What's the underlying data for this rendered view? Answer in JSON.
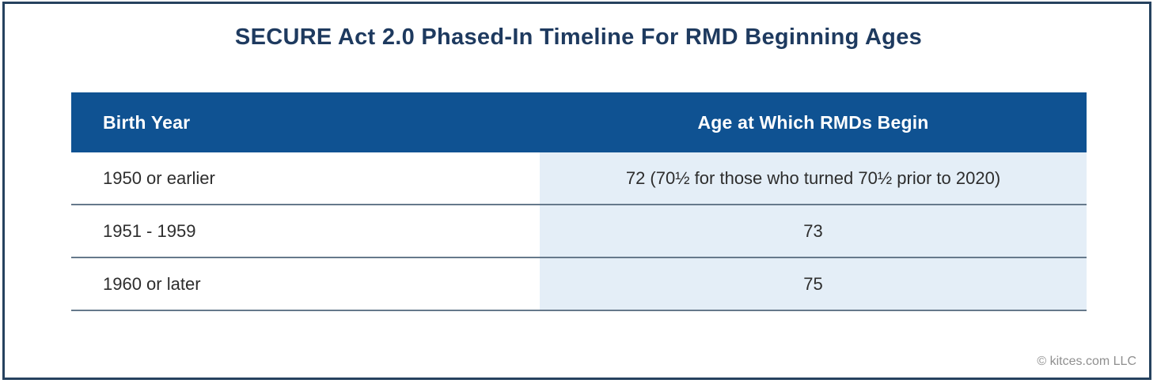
{
  "title": "SECURE Act 2.0 Phased-In Timeline For RMD Beginning Ages",
  "footer": {
    "credit": "© kitces.com LLC"
  },
  "colors": {
    "header_bg": "#0F5292",
    "header_text": "#FFFFFF",
    "highlight_column_bg": "#E4EEF7",
    "title_text": "#1E3A5F",
    "card_border": "#26425F",
    "row_divider": "#66798B",
    "body_text": "#2D2D2D",
    "credit_text": "#8F8F8F"
  },
  "chart_data": {
    "type": "table",
    "title": "SECURE Act 2.0 Phased-In Timeline For RMD Beginning Ages",
    "columns": [
      "Birth Year",
      "Age at Which RMDs Begin"
    ],
    "rows": [
      [
        "1950 or earlier",
        "72 (70½ for those who turned 70½ prior to 2020)"
      ],
      [
        "1951 - 1959",
        "73"
      ],
      [
        "1960 or later",
        "75"
      ]
    ]
  }
}
